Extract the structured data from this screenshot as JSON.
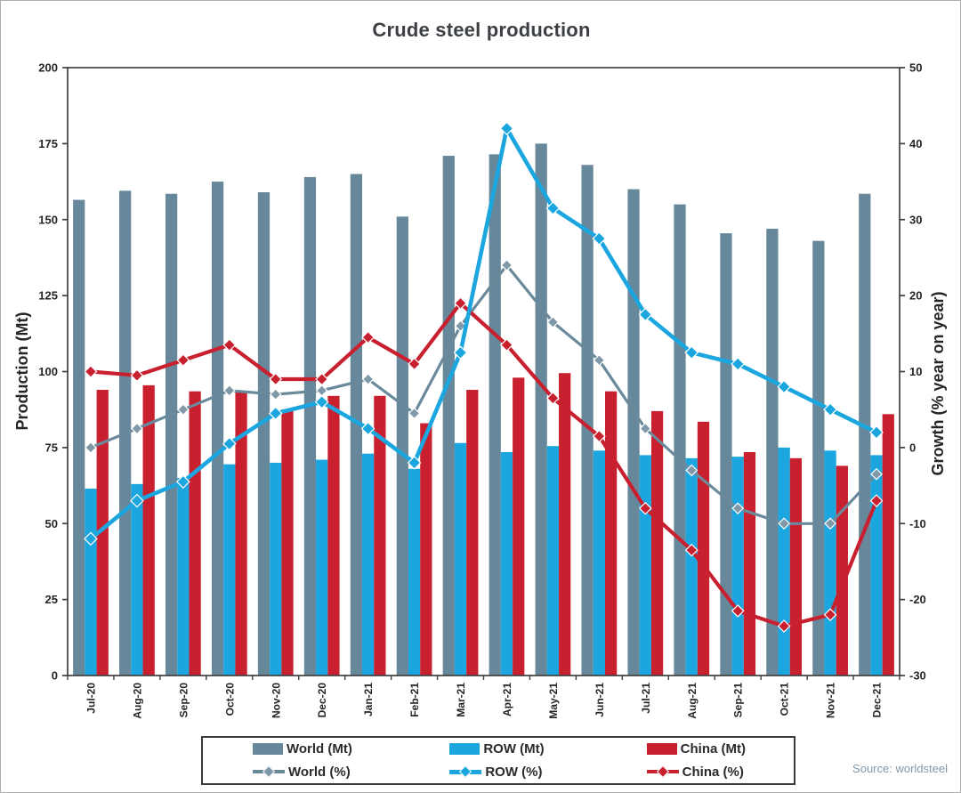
{
  "title": "Crude steel production",
  "source": "Source: worldsteel",
  "chart_data": {
    "type": "bar+line combo",
    "categories": [
      "Jul-20",
      "Aug-20",
      "Sep-20",
      "Oct-20",
      "Nov-20",
      "Dec-20",
      "Jan-21",
      "Feb-21",
      "Mar-21",
      "Apr-21",
      "May-21",
      "Jun-21",
      "Jul-21",
      "Aug-21",
      "Sep-21",
      "Oct-21",
      "Nov-21",
      "Dec-21"
    ],
    "bar_series": [
      {
        "name": "World (Mt)",
        "axis": "left",
        "color": "#67889B",
        "values": [
          156.5,
          159.5,
          158.5,
          162.5,
          159,
          164,
          165,
          151,
          171,
          171.5,
          175,
          168,
          160,
          155,
          145.5,
          147,
          143,
          158.5
        ]
      },
      {
        "name": "ROW (Mt)",
        "axis": "left",
        "color": "#1BA6DF",
        "values": [
          61.5,
          63,
          65,
          69.5,
          70,
          71,
          73,
          68,
          76.5,
          73.5,
          75.5,
          74,
          72.5,
          71.5,
          72,
          75,
          74,
          72.5
        ]
      },
      {
        "name": "China (Mt)",
        "axis": "left",
        "color": "#C9202F",
        "values": [
          94,
          95.5,
          93.5,
          93.5,
          87.5,
          92,
          92,
          83,
          94,
          98,
          99.5,
          93.5,
          87,
          83.5,
          73.5,
          71.5,
          69,
          86
        ]
      }
    ],
    "line_series": [
      {
        "name": "World (%)",
        "axis": "right",
        "color": "#6A8A9C",
        "marker_fill": "#7F99A8",
        "line_width": 3.2,
        "marker_size": 6,
        "values": [
          0,
          2.5,
          5,
          7.5,
          7,
          7.5,
          9,
          4.5,
          16,
          24,
          16.5,
          11.5,
          2.5,
          -3,
          -8,
          -10,
          -10,
          -3.5
        ]
      },
      {
        "name": "China (%)",
        "axis": "right",
        "color": "#C9202F",
        "marker_fill": "#C9202F",
        "line_width": 4.2,
        "marker_size": 6.5,
        "values": [
          10,
          9.5,
          11.5,
          13.5,
          9,
          9,
          14.5,
          11,
          19,
          13.5,
          6.5,
          1.5,
          -8,
          -13.5,
          -21.5,
          -23.5,
          -22,
          -7
        ]
      },
      {
        "name": "ROW (%)",
        "axis": "right",
        "color": "#1BA6DF",
        "marker_fill": "#1BA6DF",
        "line_width": 4.6,
        "marker_size": 7,
        "values": [
          -12,
          -7,
          -4.5,
          0.5,
          4.5,
          6,
          2.5,
          -2,
          12.5,
          42,
          31.5,
          27.5,
          17.5,
          12.5,
          11,
          8,
          5,
          2
        ]
      }
    ],
    "left_axis": {
      "label": "Production (Mt)",
      "min": 0,
      "max": 200,
      "step": 25
    },
    "right_axis": {
      "label": "Growth (% year on year)",
      "min": -30,
      "max": 50,
      "step": 10
    },
    "grid": false,
    "legend_position": "bottom"
  },
  "legend": {
    "rows": [
      [
        {
          "label": "World (Mt)",
          "swatch": "bar",
          "color": "#67889B"
        },
        {
          "label": "ROW (Mt)",
          "swatch": "bar",
          "color": "#1BA6DF"
        },
        {
          "label": "China (Mt)",
          "swatch": "bar",
          "color": "#C9202F"
        }
      ],
      [
        {
          "label": "World (%)",
          "swatch": "line",
          "color": "#6A8A9C",
          "marker": "#7F99A8"
        },
        {
          "label": "ROW (%)",
          "swatch": "line-thick",
          "color": "#1BA6DF",
          "marker": "#1BA6DF"
        },
        {
          "label": "China (%)",
          "swatch": "line",
          "color": "#C9202F",
          "marker": "#C9202F"
        }
      ]
    ]
  },
  "style": {
    "axis_line_color": "#3f3f3f",
    "tick_text_color": "#262626",
    "title_color": "#3c4044",
    "source_color": "#7e99aa"
  }
}
